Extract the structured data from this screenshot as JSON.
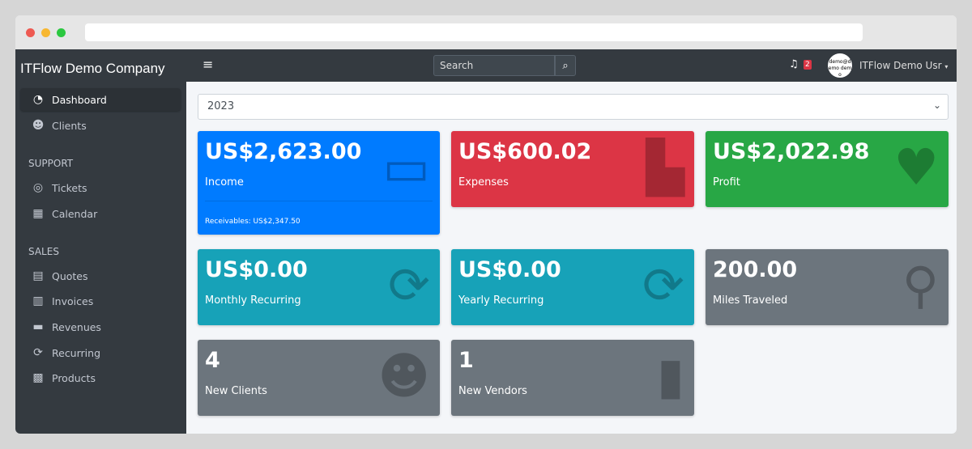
{
  "app": {
    "company": "ITFlow Demo Company"
  },
  "sidebar": {
    "items": [
      {
        "label": "Dashboard",
        "icon": "tachometer-icon",
        "active": true
      },
      {
        "label": "Clients",
        "icon": "users-icon"
      },
      {
        "label": "Tickets",
        "icon": "life-ring-icon"
      },
      {
        "label": "Calendar",
        "icon": "calendar-icon"
      },
      {
        "label": "Quotes",
        "icon": "file-icon"
      },
      {
        "label": "Invoices",
        "icon": "invoice-icon"
      },
      {
        "label": "Revenues",
        "icon": "credit-card-icon"
      },
      {
        "label": "Recurring",
        "icon": "sync-icon"
      },
      {
        "label": "Products",
        "icon": "box-icon"
      }
    ],
    "headers": {
      "support": "SUPPORT",
      "sales": "SALES"
    }
  },
  "topbar": {
    "search_placeholder": "Search",
    "notification_count": "2",
    "avatar_text": "demo@demo demo",
    "user": "ITFlow Demo Usr"
  },
  "filter": {
    "year": "2023"
  },
  "cards": [
    {
      "value": "US$2,623.00",
      "label": "Income",
      "footer": "Receivables: US$2,347.50",
      "color": "#007bff"
    },
    {
      "value": "US$600.02",
      "label": "Expenses",
      "color": "#dc3545"
    },
    {
      "value": "US$2,022.98",
      "label": "Profit",
      "color": "#28a745"
    },
    {
      "value": "US$0.00",
      "label": "Monthly Recurring",
      "color": "#17a2b8"
    },
    {
      "value": "US$0.00",
      "label": "Yearly Recurring",
      "color": "#17a2b8"
    },
    {
      "value": "200.00",
      "label": "Miles Traveled",
      "color": "#6c757d"
    },
    {
      "value": "4",
      "label": "New Clients",
      "color": "#6c757d"
    },
    {
      "value": "1",
      "label": "New Vendors",
      "color": "#6c757d"
    }
  ]
}
